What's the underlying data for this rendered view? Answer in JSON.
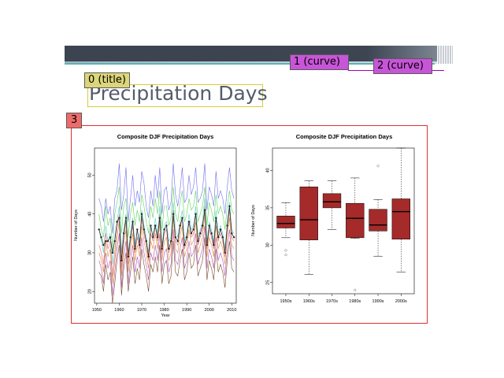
{
  "slide": {
    "title": "Precipitation Days"
  },
  "annotations": {
    "title_tag": "0 (title)",
    "curve1_tag": "1 (curve)",
    "curve2_tag": "2 (curve)",
    "figure_tag": "3"
  },
  "colors": {
    "banner": "#3c4452",
    "accent_teal": "#56b3b8",
    "title_text": "#545c6a",
    "box_fill": "#a52a2a",
    "figure_border": "#e03030"
  },
  "chart_data": [
    {
      "type": "line",
      "title": "Composite DJF Precipitation Days",
      "xlabel": "Year",
      "ylabel": "Number of Days",
      "xlim": [
        1949,
        2012
      ],
      "ylim": [
        17,
        57
      ],
      "x_ticks": [
        "1950",
        "1960",
        "1970",
        "1980",
        "1990",
        "2000",
        "2010"
      ],
      "y_ticks": [
        "20",
        "30",
        "40",
        "50"
      ],
      "x": [
        1951,
        1952,
        1953,
        1954,
        1955,
        1956,
        1957,
        1958,
        1959,
        1960,
        1961,
        1962,
        1963,
        1964,
        1965,
        1966,
        1967,
        1968,
        1969,
        1970,
        1971,
        1972,
        1973,
        1974,
        1975,
        1976,
        1977,
        1978,
        1979,
        1980,
        1981,
        1982,
        1983,
        1984,
        1985,
        1986,
        1987,
        1988,
        1989,
        1990,
        1991,
        1992,
        1993,
        1994,
        1995,
        1996,
        1997,
        1998,
        1999,
        2000,
        2001,
        2002,
        2003,
        2004,
        2005,
        2006,
        2007,
        2008,
        2009,
        2010,
        2011
      ],
      "series": [
        {
          "color": "#6f6ff0",
          "values": [
            44,
            42,
            38,
            44,
            40,
            42,
            35,
            44,
            46,
            53,
            41,
            45,
            52,
            38,
            44,
            50,
            42,
            46,
            43,
            51,
            48,
            42,
            39,
            46,
            42,
            50,
            44,
            52,
            40,
            46,
            47,
            41,
            43,
            53,
            45,
            42,
            46,
            52,
            43,
            44,
            50,
            45,
            47,
            52,
            43,
            44,
            46,
            53,
            41,
            47,
            45,
            42,
            51,
            44,
            46,
            44,
            40,
            47,
            52,
            46,
            44
          ]
        },
        {
          "color": "#5dd35d",
          "values": [
            40,
            36,
            34,
            42,
            37,
            39,
            31,
            40,
            43,
            47,
            35,
            42,
            44,
            34,
            40,
            43,
            37,
            41,
            38,
            45,
            42,
            38,
            35,
            42,
            39,
            44,
            40,
            46,
            36,
            42,
            42,
            37,
            39,
            47,
            40,
            38,
            43,
            46,
            38,
            40,
            44,
            41,
            42,
            46,
            38,
            40,
            42,
            47,
            37,
            43,
            41,
            38,
            45,
            40,
            42,
            40,
            36,
            42,
            46,
            41,
            40
          ]
        },
        {
          "color": "#e36a6a",
          "values": [
            32,
            30,
            27,
            35,
            31,
            33,
            24,
            30,
            36,
            40,
            26,
            34,
            38,
            27,
            33,
            37,
            30,
            34,
            31,
            39,
            35,
            32,
            28,
            35,
            33,
            37,
            33,
            40,
            30,
            35,
            36,
            30,
            32,
            41,
            33,
            32,
            36,
            39,
            31,
            33,
            38,
            34,
            35,
            40,
            32,
            34,
            36,
            42,
            31,
            36,
            34,
            31,
            39,
            33,
            35,
            33,
            29,
            36,
            41,
            34,
            33
          ]
        },
        {
          "color": "#5bd0d0",
          "values": [
            36,
            33,
            30,
            37,
            33,
            35,
            27,
            34,
            38,
            42,
            30,
            36,
            40,
            30,
            35,
            39,
            32,
            36,
            33,
            41,
            37,
            34,
            30,
            37,
            34,
            39,
            35,
            42,
            32,
            37,
            38,
            33,
            34,
            43,
            36,
            34,
            38,
            41,
            33,
            35,
            40,
            36,
            37,
            42,
            34,
            36,
            38,
            44,
            33,
            38,
            36,
            33,
            41,
            35,
            37,
            35,
            31,
            38,
            43,
            36,
            35
          ]
        },
        {
          "color": "#d68a3a",
          "values": [
            30,
            28,
            25,
            33,
            29,
            31,
            22,
            28,
            34,
            38,
            24,
            32,
            36,
            25,
            31,
            35,
            28,
            32,
            29,
            37,
            33,
            30,
            26,
            33,
            31,
            35,
            31,
            38,
            28,
            33,
            34,
            28,
            30,
            39,
            31,
            30,
            34,
            37,
            29,
            31,
            36,
            32,
            33,
            38,
            30,
            32,
            34,
            40,
            29,
            34,
            32,
            29,
            37,
            31,
            33,
            31,
            27,
            34,
            39,
            32,
            31
          ]
        },
        {
          "color": "#b04fb0",
          "values": [
            28,
            26,
            22,
            30,
            26,
            28,
            19,
            25,
            31,
            35,
            21,
            29,
            33,
            22,
            28,
            32,
            25,
            29,
            26,
            34,
            30,
            27,
            23,
            30,
            28,
            32,
            28,
            35,
            25,
            30,
            31,
            25,
            27,
            36,
            28,
            27,
            31,
            34,
            26,
            28,
            33,
            29,
            30,
            35,
            27,
            29,
            31,
            37,
            26,
            31,
            29,
            26,
            34,
            28,
            30,
            28,
            24,
            31,
            36,
            29,
            28
          ]
        },
        {
          "color": "#7a4a2a",
          "values": [
            25,
            24,
            20,
            27,
            23,
            25,
            17,
            22,
            28,
            32,
            19,
            26,
            30,
            20,
            25,
            29,
            22,
            26,
            23,
            31,
            27,
            24,
            20,
            27,
            25,
            29,
            25,
            32,
            22,
            27,
            28,
            22,
            24,
            33,
            25,
            24,
            28,
            31,
            23,
            25,
            30,
            26,
            27,
            32,
            24,
            26,
            28,
            34,
            23,
            28,
            26,
            23,
            31,
            25,
            27,
            25,
            21,
            28,
            33,
            26,
            25
          ]
        },
        {
          "color": "#222222",
          "dotted": true,
          "values": [
            36,
            34,
            32,
            33,
            33,
            34,
            30,
            33,
            38,
            39,
            28,
            35,
            39,
            29,
            34,
            38,
            31,
            36,
            32,
            40,
            36,
            33,
            29,
            37,
            34,
            37,
            34,
            39,
            31,
            36,
            37,
            31,
            33,
            40,
            34,
            33,
            37,
            39,
            32,
            34,
            38,
            35,
            36,
            40,
            33,
            35,
            37,
            41,
            32,
            37,
            35,
            32,
            39,
            34,
            36,
            34,
            30,
            37,
            42,
            35,
            34
          ]
        }
      ]
    },
    {
      "type": "box",
      "title": "Composite DJF Precipitation Days",
      "xlabel": "",
      "ylabel": "Number of Days",
      "ylim": [
        23.5,
        43
      ],
      "y_ticks": [
        "25",
        "30",
        "35",
        "40"
      ],
      "categories": [
        "1950s",
        "1960s",
        "1970s",
        "1980s",
        "1990s",
        "2000s"
      ],
      "boxes": [
        {
          "whisker_low": 31,
          "q1": 32.3,
          "median": 32.9,
          "q3": 33.9,
          "whisker_high": 35.7,
          "outliers": [
            29.3,
            28.7
          ]
        },
        {
          "whisker_low": 26.1,
          "q1": 30.7,
          "median": 33.4,
          "q3": 37.8,
          "whisker_high": 38.6,
          "outliers": []
        },
        {
          "whisker_low": 32.1,
          "q1": 35,
          "median": 35.8,
          "q3": 36.9,
          "whisker_high": 38.6,
          "outliers": []
        },
        {
          "whisker_low": 30.9,
          "q1": 31,
          "median": 33.6,
          "q3": 35.6,
          "whisker_high": 39,
          "outliers": [
            24
          ]
        },
        {
          "whisker_low": 28.5,
          "q1": 31.9,
          "median": 32.7,
          "q3": 34.8,
          "whisker_high": 36.1,
          "outliers": [
            40.6
          ]
        },
        {
          "whisker_low": 26.4,
          "q1": 30.8,
          "median": 34.5,
          "q3": 36.2,
          "whisker_high": 43,
          "outliers": []
        }
      ]
    }
  ]
}
